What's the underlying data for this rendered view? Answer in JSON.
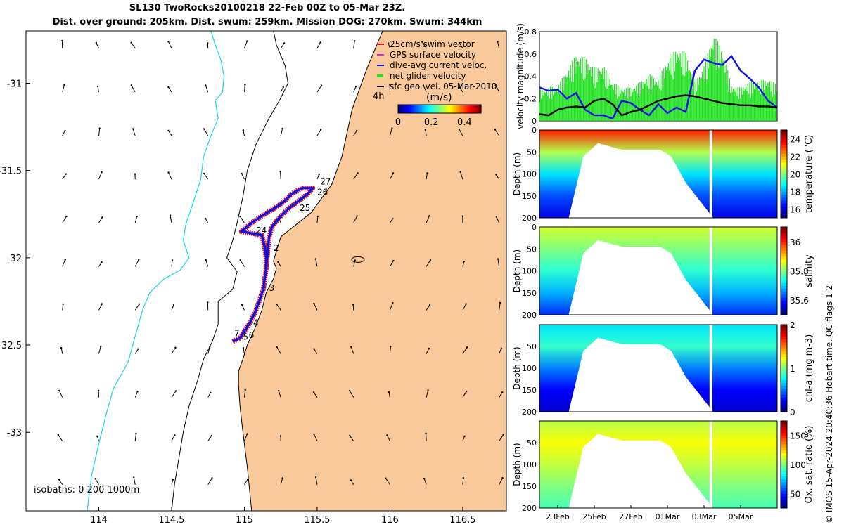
{
  "title_line1": "SL130 TwoRocks20100218 22-Feb 00Z to 05-Mar 23Z.",
  "title_line2": "Dist. over ground: 205km. Dist. swum: 259km. Mission DOG: 270km. Swum: 344km",
  "footer": "© IMOS 15-Apr-2024 20:40:36 Hobart time. QC flags 1  2",
  "colors": {
    "land": "#f9c99b",
    "isobath_200": "#000000",
    "isobath_1000": "#2fd8e0",
    "track_red": "#e01010",
    "track_blue": "#1010e0",
    "net_green": "#22e022",
    "sfc_black": "#000000"
  },
  "chart_data": [
    {
      "type": "map",
      "xlim": [
        113.5,
        116.8
      ],
      "ylim": [
        -33.45,
        -30.7
      ],
      "x_ticks": [
        114,
        114.5,
        115,
        115.5,
        116,
        116.5
      ],
      "x_tick_labels": [
        "114",
        "114.5",
        "115",
        "115.5",
        "116",
        "116.5"
      ],
      "y_ticks": [
        -31,
        -31.5,
        -32,
        -32.5,
        -33
      ],
      "y_tick_labels": [
        "-31",
        "-31.5",
        "-32",
        "-32.5",
        "-33"
      ],
      "isobath_label": "isobaths: 0   200   1000m",
      "arrow_label": "4h",
      "legend": [
        {
          "label": "25cm/s swim vector",
          "color": "#e01010"
        },
        {
          "label": "GPS surface velocity",
          "color": "#e020e0"
        },
        {
          "label": "dive-avg current veloc.",
          "color": "#1010e0"
        },
        {
          "label": "net glider velocity",
          "color": "#22e022"
        },
        {
          "label": "sfc geo. vel. 05-Mar-2010",
          "color": "#000000"
        }
      ],
      "colorbar": {
        "label": "(m/s)",
        "range": [
          0,
          0.5
        ],
        "ticks": [
          0,
          0.2,
          0.4
        ],
        "tick_labels": [
          "0",
          "0.2",
          "0.4"
        ]
      },
      "coast": [
        [
          115.95,
          -30.7
        ],
        [
          115.84,
          -30.92
        ],
        [
          115.74,
          -31.15
        ],
        [
          115.67,
          -31.42
        ],
        [
          115.6,
          -31.58
        ],
        [
          115.53,
          -31.66
        ],
        [
          115.46,
          -31.74
        ],
        [
          115.37,
          -31.8
        ],
        [
          115.25,
          -31.88
        ],
        [
          115.22,
          -31.96
        ],
        [
          115.2,
          -32.02
        ],
        [
          115.22,
          -32.06
        ],
        [
          115.2,
          -32.12
        ],
        [
          115.15,
          -32.2
        ],
        [
          115.12,
          -32.3
        ],
        [
          115.07,
          -32.41
        ],
        [
          115.02,
          -32.5
        ],
        [
          114.99,
          -32.58
        ],
        [
          114.96,
          -32.65
        ],
        [
          114.96,
          -32.73
        ],
        [
          114.97,
          -32.85
        ],
        [
          114.99,
          -33.0
        ],
        [
          115.02,
          -33.2
        ],
        [
          115.05,
          -33.45
        ]
      ],
      "iso200": [
        [
          115.2,
          -30.7
        ],
        [
          115.22,
          -30.78
        ],
        [
          115.28,
          -30.9
        ],
        [
          115.3,
          -31.0
        ],
        [
          115.24,
          -31.1
        ],
        [
          115.17,
          -31.2
        ],
        [
          115.08,
          -31.35
        ],
        [
          115.02,
          -31.5
        ],
        [
          114.99,
          -31.65
        ],
        [
          114.95,
          -31.8
        ],
        [
          114.92,
          -31.9
        ],
        [
          114.88,
          -32.0
        ],
        [
          114.95,
          -32.08
        ],
        [
          114.92,
          -32.18
        ],
        [
          114.82,
          -32.25
        ],
        [
          114.82,
          -32.38
        ],
        [
          114.78,
          -32.48
        ],
        [
          114.72,
          -32.58
        ],
        [
          114.68,
          -32.7
        ],
        [
          114.62,
          -32.85
        ],
        [
          114.58,
          -33.0
        ],
        [
          114.55,
          -33.15
        ],
        [
          114.52,
          -33.3
        ],
        [
          114.5,
          -33.45
        ]
      ],
      "iso1000": [
        [
          114.77,
          -30.7
        ],
        [
          114.8,
          -30.78
        ],
        [
          114.84,
          -30.87
        ],
        [
          114.86,
          -30.96
        ],
        [
          114.85,
          -31.05
        ],
        [
          114.8,
          -31.1
        ],
        [
          114.82,
          -31.2
        ],
        [
          114.77,
          -31.3
        ],
        [
          114.72,
          -31.42
        ],
        [
          114.7,
          -31.55
        ],
        [
          114.65,
          -31.68
        ],
        [
          114.6,
          -31.8
        ],
        [
          114.58,
          -31.9
        ],
        [
          114.62,
          -32.0
        ],
        [
          114.56,
          -32.07
        ],
        [
          114.45,
          -32.12
        ],
        [
          114.35,
          -32.2
        ],
        [
          114.3,
          -32.3
        ],
        [
          114.25,
          -32.45
        ],
        [
          114.2,
          -32.6
        ],
        [
          114.1,
          -32.75
        ],
        [
          114.05,
          -32.9
        ],
        [
          113.99,
          -33.1
        ],
        [
          113.95,
          -33.25
        ],
        [
          113.92,
          -33.45
        ]
      ],
      "track": [
        [
          114.92,
          -32.48
        ],
        [
          114.97,
          -32.46
        ],
        [
          115.0,
          -32.42
        ],
        [
          115.04,
          -32.37
        ],
        [
          115.08,
          -32.3
        ],
        [
          115.1,
          -32.25
        ],
        [
          115.13,
          -32.18
        ],
        [
          115.14,
          -32.12
        ],
        [
          115.15,
          -32.06
        ],
        [
          115.15,
          -32.0
        ],
        [
          115.14,
          -31.94
        ],
        [
          115.12,
          -31.87
        ],
        [
          115.05,
          -31.86
        ],
        [
          114.98,
          -31.85
        ],
        [
          115.05,
          -31.8
        ],
        [
          115.12,
          -31.76
        ],
        [
          115.2,
          -31.72
        ],
        [
          115.27,
          -31.68
        ],
        [
          115.33,
          -31.63
        ],
        [
          115.4,
          -31.6
        ],
        [
          115.47,
          -31.6
        ],
        [
          115.44,
          -31.63
        ],
        [
          115.38,
          -31.67
        ],
        [
          115.3,
          -31.72
        ],
        [
          115.24,
          -31.77
        ],
        [
          115.19,
          -31.82
        ],
        [
          115.17,
          -31.88
        ],
        [
          115.16,
          -31.96
        ],
        [
          115.15,
          -32.05
        ]
      ],
      "day_labels": [
        {
          "t": "27",
          "lon": 115.52,
          "lat": -31.58
        },
        {
          "t": "26",
          "lon": 115.5,
          "lat": -31.64
        },
        {
          "t": "25",
          "lon": 115.38,
          "lat": -31.73
        },
        {
          "t": "24",
          "lon": 115.08,
          "lat": -31.86
        },
        {
          "t": "2",
          "lon": 115.2,
          "lat": -31.96
        },
        {
          "t": "3",
          "lon": 115.17,
          "lat": -32.19
        },
        {
          "t": "4",
          "lon": 115.06,
          "lat": -32.39
        },
        {
          "t": "5",
          "lon": 114.99,
          "lat": -32.47
        },
        {
          "t": "6",
          "lon": 115.03,
          "lat": -32.46
        },
        {
          "t": "7",
          "lon": 114.93,
          "lat": -32.45
        }
      ]
    },
    {
      "type": "line",
      "ylabel": "velocity magnitude (m/s)",
      "ylim": [
        0,
        0.8
      ],
      "y_ticks": [
        0,
        0.2,
        0.4,
        0.6,
        0.8
      ],
      "y_tick_labels": [
        "0",
        "0.2",
        "0.4",
        "0.6",
        "0.8"
      ],
      "x_range_days": [
        0,
        13
      ],
      "series": [
        {
          "name": "dive-avg current veloc.",
          "color": "#1010e0",
          "x": [
            0,
            0.5,
            1,
            1.5,
            2,
            2.5,
            3,
            3.5,
            4,
            4.5,
            5,
            5.5,
            6,
            6.5,
            7,
            7.5,
            8,
            8.5,
            9,
            9.5,
            10,
            10.5,
            11,
            11.5,
            12,
            12.5,
            13
          ],
          "values": [
            0.3,
            0.27,
            0.28,
            0.2,
            0.25,
            0.1,
            0.05,
            0.05,
            0.02,
            0.18,
            0.16,
            0.1,
            0.05,
            0.15,
            0.07,
            0.12,
            0.08,
            0.45,
            0.55,
            0.52,
            0.5,
            0.58,
            0.45,
            0.38,
            0.3,
            0.18,
            0.12
          ]
        },
        {
          "name": "sfc geo. vel.",
          "color": "#000000",
          "x": [
            0,
            0.5,
            1,
            1.5,
            2,
            2.5,
            3,
            3.5,
            4,
            4.5,
            5,
            5.5,
            6,
            6.5,
            7,
            7.5,
            8,
            8.5,
            9,
            9.5,
            10,
            10.5,
            11,
            11.5,
            12,
            12.5,
            13
          ],
          "values": [
            0.06,
            0.05,
            0.1,
            0.12,
            0.13,
            0.12,
            0.18,
            0.2,
            0.15,
            0.05,
            0.08,
            0.1,
            0.14,
            0.18,
            0.2,
            0.22,
            0.23,
            0.22,
            0.2,
            0.18,
            0.16,
            0.15,
            0.14,
            0.14,
            0.13,
            0.13,
            0.12
          ]
        },
        {
          "name": "net glider velocity envelope",
          "color": "#22e022",
          "x": [
            0,
            0.5,
            1,
            1.5,
            2,
            2.5,
            3,
            3.5,
            4,
            4.5,
            5,
            5.5,
            6,
            6.5,
            7,
            7.5,
            8,
            8.5,
            9,
            9.5,
            10,
            10.5,
            11,
            11.5,
            12,
            12.5,
            13
          ],
          "values": [
            0.28,
            0.3,
            0.32,
            0.45,
            0.6,
            0.57,
            0.48,
            0.5,
            0.35,
            0.3,
            0.3,
            0.35,
            0.42,
            0.38,
            0.55,
            0.65,
            0.62,
            0.35,
            0.5,
            0.78,
            0.65,
            0.32,
            0.3,
            0.35,
            0.36,
            0.38,
            0.33
          ]
        }
      ]
    },
    {
      "type": "heatmap",
      "ylabel": "Depth (m)",
      "ylim": [
        200,
        0
      ],
      "y_ticks": [
        0,
        50,
        100,
        150,
        200
      ],
      "y_tick_labels": [
        "0",
        "50",
        "100",
        "150",
        "200"
      ],
      "colorbar_label": "temperature (°C)",
      "colorbar_ticks": [
        "16",
        "18",
        "20",
        "22",
        "24"
      ],
      "crange": [
        15,
        25
      ],
      "profile": [
        {
          "depth": 0,
          "value": 23.5
        },
        {
          "depth": 50,
          "value": 20.5
        },
        {
          "depth": 100,
          "value": 18.5
        },
        {
          "depth": 150,
          "value": 17
        },
        {
          "depth": 200,
          "value": 16
        }
      ]
    },
    {
      "type": "heatmap",
      "ylabel": "Depth (m)",
      "ylim": [
        200,
        0
      ],
      "y_ticks": [
        0,
        50,
        100,
        150,
        200
      ],
      "y_tick_labels": [
        "0",
        "50",
        "100",
        "150",
        "200"
      ],
      "colorbar_label": "salinity",
      "colorbar_ticks": [
        "35.6",
        "35.8",
        "36"
      ],
      "crange": [
        35.5,
        36.1
      ],
      "profile": [
        {
          "depth": 0,
          "value": 35.85
        },
        {
          "depth": 50,
          "value": 35.8
        },
        {
          "depth": 100,
          "value": 35.75
        },
        {
          "depth": 150,
          "value": 35.68
        },
        {
          "depth": 200,
          "value": 35.6
        }
      ]
    },
    {
      "type": "heatmap",
      "ylabel": "Depth (m)",
      "ylim": [
        200,
        0
      ],
      "y_ticks": [
        50,
        100,
        150,
        200
      ],
      "y_tick_labels": [
        "50",
        "100",
        "150",
        "200"
      ],
      "colorbar_label": "chl-a (mg m-3)",
      "colorbar_ticks": [
        "0",
        "1",
        "2"
      ],
      "crange": [
        0,
        2
      ],
      "profile": [
        {
          "depth": 0,
          "value": 0.7
        },
        {
          "depth": 50,
          "value": 0.85
        },
        {
          "depth": 100,
          "value": 0.5
        },
        {
          "depth": 150,
          "value": 0.25
        },
        {
          "depth": 200,
          "value": 0.15
        }
      ]
    },
    {
      "type": "heatmap",
      "ylabel": "Depth (m)",
      "ylim": [
        200,
        0
      ],
      "y_ticks": [
        50,
        100,
        150,
        200
      ],
      "y_tick_labels": [
        "50",
        "100",
        "150",
        "200"
      ],
      "colorbar_label": "Ox. sat. ratio (%)",
      "colorbar_ticks": [
        "50",
        "100",
        "150"
      ],
      "crange": [
        25,
        175
      ],
      "profile": [
        {
          "depth": 0,
          "value": 108
        },
        {
          "depth": 50,
          "value": 118
        },
        {
          "depth": 100,
          "value": 110
        },
        {
          "depth": 150,
          "value": 100
        },
        {
          "depth": 200,
          "value": 92
        }
      ],
      "x_tick_labels": [
        "23Feb",
        "25Feb",
        "27Feb",
        "01Mar",
        "03Mar",
        "05Mar"
      ],
      "x_tick_days": [
        1,
        3,
        5,
        7,
        9,
        11
      ]
    }
  ]
}
